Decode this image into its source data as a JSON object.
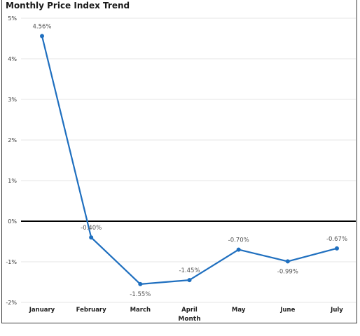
{
  "chart_data": {
    "type": "line",
    "title": "Monthly Price Index Trend",
    "xlabel": "Month",
    "ylabel": "",
    "categories": [
      "January",
      "February",
      "March",
      "April",
      "May",
      "June",
      "July"
    ],
    "values": [
      4.56,
      -0.4,
      -1.55,
      -1.45,
      -0.7,
      -0.99,
      -0.67
    ],
    "data_labels": [
      "4.56%",
      "-0.40%",
      "-1.55%",
      "-1.45%",
      "-0.70%",
      "-0.99%",
      "-0.67%"
    ],
    "yticks": [
      5,
      4,
      3,
      2,
      1,
      0,
      -1,
      -2
    ],
    "ytick_labels": [
      "5%",
      "4%",
      "3%",
      "2%",
      "1%",
      "0%",
      "-1%",
      "-2%"
    ],
    "ylim": [
      -2,
      5
    ],
    "grid": true,
    "legend": "none",
    "colors": {
      "line": "#1f6fbf",
      "zero_line": "#000000",
      "grid": "#e6e6e6"
    }
  }
}
